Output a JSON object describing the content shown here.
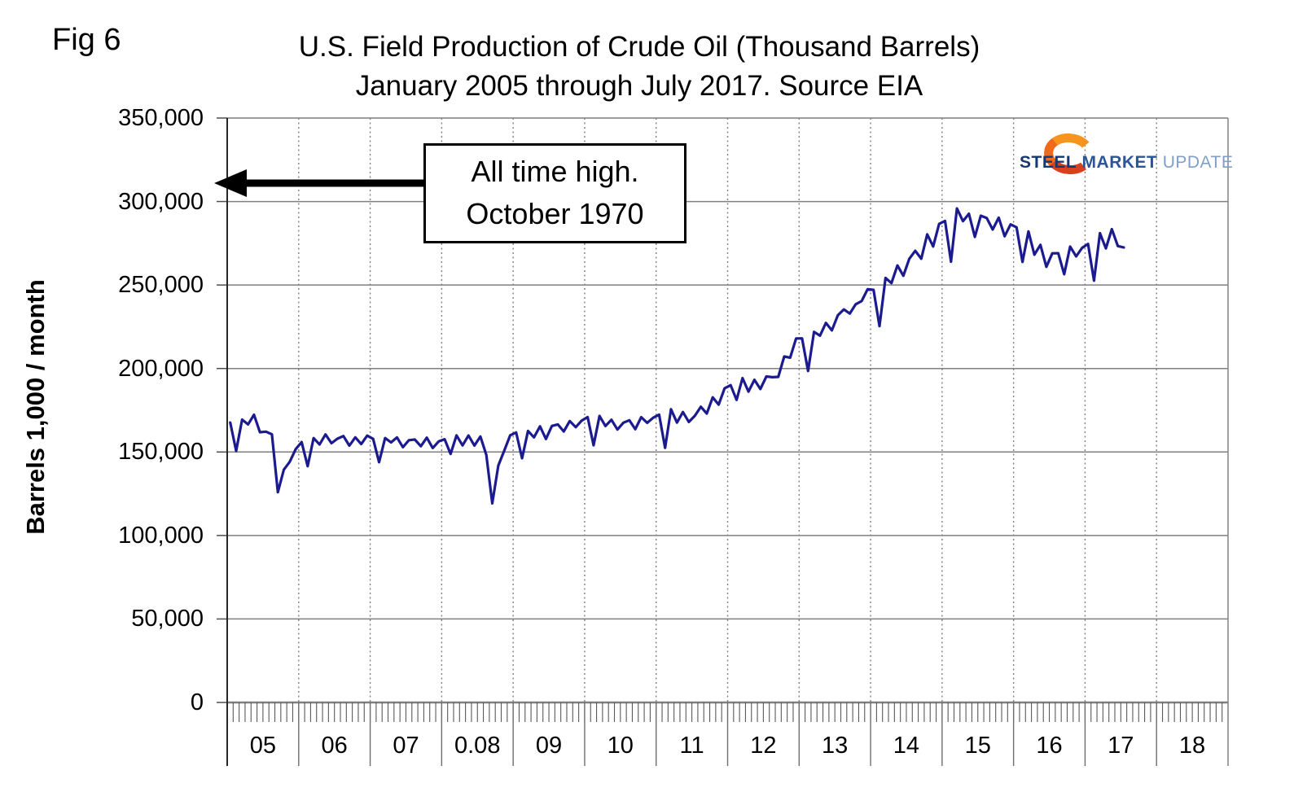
{
  "figure": {
    "fig_label": "Fig 6",
    "title_line1": "U.S. Field Production of Crude Oil (Thousand Barrels)",
    "title_line2": "January 2005 through July 2017. Source EIA"
  },
  "annotation": {
    "line1": "All time high.",
    "line2": "October 1970"
  },
  "logo": {
    "word1": "STEEL",
    "word2": "MARKET",
    "word3": "UPDATE"
  },
  "chart_data": {
    "type": "line",
    "title": "U.S. Field Production of Crude Oil (Thousand Barrels) — January 2005 through July 2017. Source EIA",
    "xlabel": "",
    "ylabel": "Barrels 1,000 / month",
    "ylim": [
      0,
      350000
    ],
    "ytick_interval": 50000,
    "ytick_labels": [
      "0",
      "50,000",
      "100,000",
      "150,000",
      "200,000",
      "250,000",
      "300,000",
      "350,000"
    ],
    "x_year_labels": [
      "05",
      "06",
      "07",
      "0.08",
      "09",
      "10",
      "11",
      "12",
      "13",
      "14",
      "15",
      "16",
      "17",
      "18"
    ],
    "x_start": "2005-01",
    "x_end": "2017-07",
    "x_frequency": "monthly",
    "grid": "on",
    "line_color": "#1b1b8f",
    "grid_color": "#7f7f7f",
    "annotation_arrow_value": 311000,
    "series": [
      {
        "name": "U.S. field production of crude oil (thousand barrels per month)",
        "values": [
          167648,
          150696,
          169415,
          166500,
          172329,
          161820,
          162161,
          160580,
          125910,
          139345,
          144150,
          151683,
          155930,
          141456,
          158348,
          154500,
          160518,
          155280,
          157945,
          159557,
          153810,
          158751,
          154710,
          159805,
          157852,
          143892,
          158348,
          155760,
          158720,
          152880,
          157046,
          157449,
          153450,
          158596,
          152370,
          156333,
          157666,
          148799,
          159929,
          153930,
          159867,
          153840,
          159247,
          148242,
          119220,
          141856,
          150810,
          159991,
          161696,
          146216,
          162626,
          158790,
          165354,
          157770,
          165602,
          166532,
          162270,
          168516,
          164880,
          168826,
          170903,
          154028,
          171585,
          165540,
          169291,
          163470,
          167524,
          169012,
          163650,
          170872,
          167430,
          170531,
          172360,
          152500,
          175584,
          167610,
          173910,
          168000,
          171709,
          177103,
          173010,
          182683,
          178380,
          188108,
          190030,
          181192,
          194246,
          186180,
          193223,
          187740,
          195207,
          194773,
          194970,
          207173,
          206490,
          217992,
          218054,
          198492,
          221929,
          219660,
          227323,
          222810,
          231818,
          235414,
          232890,
          238483,
          240390,
          247473,
          247101,
          225372,
          254200,
          251160,
          261702,
          255510,
          265701,
          270475,
          265710,
          280333,
          273090,
          286595,
          288393,
          263956,
          295864,
          288240,
          292671,
          278760,
          291524,
          290098,
          283230,
          290346,
          279210,
          286285,
          284549,
          263813,
          282100,
          268170,
          274071,
          260880,
          268987,
          269018,
          256470,
          273048,
          267120,
          272273,
          274598,
          252600,
          281007,
          271890,
          283456,
          273300,
          272500
        ]
      }
    ]
  }
}
